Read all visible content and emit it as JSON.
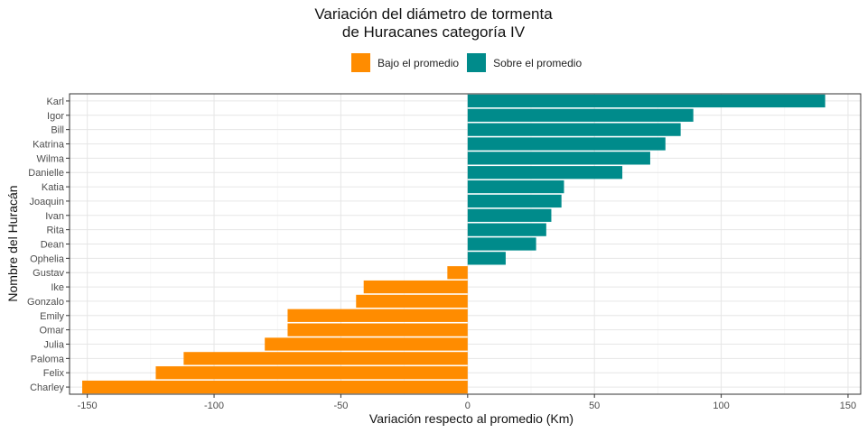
{
  "chart_data": {
    "type": "bar",
    "orientation": "horizontal",
    "title_lines": [
      "Variación del diámetro de tormenta",
      "de Huracanes categoría IV"
    ],
    "xlabel": "Variación respecto al promedio (Km)",
    "ylabel": "Nombre del Huracán",
    "xlim": [
      -157,
      155
    ],
    "xticks": [
      -150,
      -100,
      -50,
      0,
      50,
      100,
      150
    ],
    "xtick_labels": [
      "-150",
      "-100",
      "-50",
      "0",
      "50",
      "100",
      "150"
    ],
    "legend_position": "top",
    "legend": [
      {
        "name": "Bajo el promedio",
        "color": "#FF8C00"
      },
      {
        "name": "Sobre el promedio",
        "color": "#008B8B"
      }
    ],
    "grid": true,
    "categories": [
      "Karl",
      "Igor",
      "Bill",
      "Katrina",
      "Wilma",
      "Danielle",
      "Katia",
      "Joaquin",
      "Ivan",
      "Rita",
      "Dean",
      "Ophelia",
      "Gustav",
      "Ike",
      "Gonzalo",
      "Emily",
      "Omar",
      "Julia",
      "Paloma",
      "Felix",
      "Charley"
    ],
    "values": [
      141,
      89,
      84,
      78,
      72,
      61,
      38,
      37,
      33,
      31,
      27,
      15,
      -8,
      -41,
      -44,
      -71,
      -71,
      -80,
      -112,
      -123,
      -152
    ]
  }
}
